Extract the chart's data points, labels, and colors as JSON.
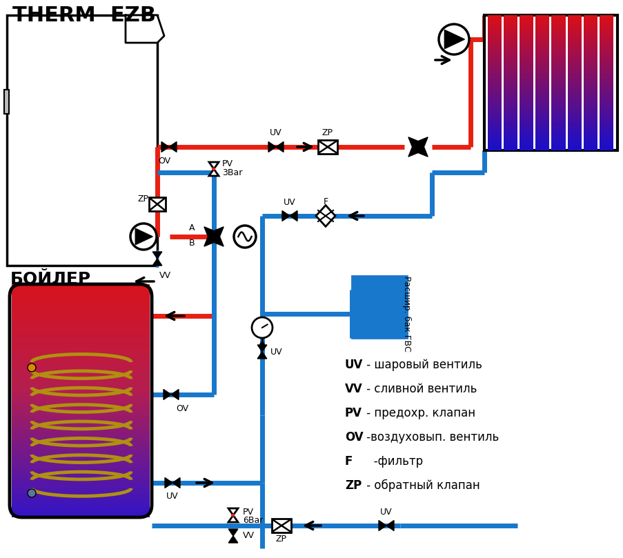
{
  "bg": "#ffffff",
  "red": "#e82012",
  "blue": "#1878cc",
  "black": "#000000",
  "lw_pipe": 5,
  "title": "THERM  EZB",
  "boiler_label": "БОЙЛЕР",
  "exp_tank_label": "Расшир. бак ГВС",
  "legend": [
    [
      "UV",
      " - шаровый вентиль"
    ],
    [
      "VV",
      " - сливной вентиль"
    ],
    [
      "PV",
      " - предохр. клапан"
    ],
    [
      "OV",
      " -воздуховып. вентиль"
    ],
    [
      "F",
      "   -фильтр"
    ],
    [
      "ZP",
      " - обратный клапан"
    ]
  ]
}
